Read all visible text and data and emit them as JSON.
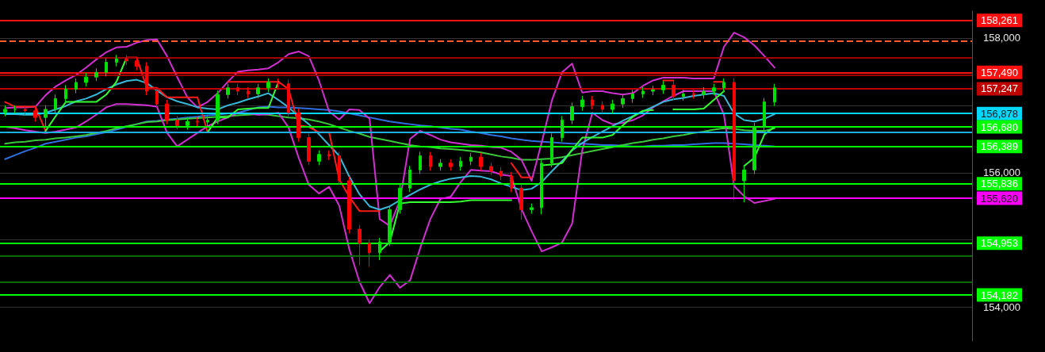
{
  "chart_data": {
    "type": "candlestick",
    "categories": [
      null,
      null,
      null,
      null,
      null,
      null,
      null,
      null,
      null,
      null,
      null,
      null,
      null,
      null,
      null,
      null,
      null,
      null,
      null,
      null,
      null,
      null,
      null,
      null,
      null,
      null,
      null,
      null,
      null,
      null,
      null,
      null,
      null,
      null,
      null,
      null,
      null,
      null,
      null,
      null,
      null,
      null,
      null,
      null,
      null,
      null,
      null,
      null,
      null,
      null,
      null,
      null,
      null,
      null,
      null,
      null,
      null,
      null,
      null,
      null,
      null,
      null,
      null,
      null,
      null,
      null,
      null,
      null,
      null,
      null,
      null,
      null,
      null,
      null,
      null,
      null,
      null,
      null,
      null,
      null,
      null,
      null,
      null,
      null,
      null,
      null,
      null,
      null,
      null,
      null,
      null,
      null,
      null,
      null,
      null,
      null
    ],
    "ylim": [
      153500,
      158400
    ],
    "yticks": [
      {
        "value": 154000,
        "label": "154,000"
      },
      {
        "value": 155000,
        "label": null
      },
      {
        "value": 156000,
        "label": "156,000"
      },
      {
        "value": 157000,
        "label": null
      },
      {
        "value": 158000,
        "label": "158,000"
      }
    ],
    "grid": "y",
    "tick_labels": "y",
    "series": [
      {
        "ohlc": [
          [
            156900,
            157000,
            156840,
            156940
          ],
          [
            156940,
            157000,
            156880,
            156940
          ],
          [
            156940,
            157000,
            156860,
            156920
          ],
          [
            156920,
            156980,
            156760,
            156820
          ],
          [
            156820,
            157000,
            156680,
            156940
          ],
          [
            156940,
            157160,
            156880,
            157100
          ],
          [
            157100,
            157300,
            157040,
            157240
          ],
          [
            157240,
            157400,
            157180,
            157340
          ],
          [
            157340,
            157480,
            157280,
            157420
          ],
          [
            157420,
            157550,
            157360,
            157490
          ],
          [
            157490,
            157700,
            157430,
            157640
          ],
          [
            157640,
            157750,
            157580,
            157690
          ],
          [
            157690,
            157750,
            157600,
            157660
          ],
          [
            157660,
            157720,
            157520,
            157580
          ],
          [
            157580,
            157640,
            157150,
            157210
          ],
          [
            157210,
            157270,
            156960,
            157020
          ],
          [
            157020,
            157080,
            156720,
            156780
          ],
          [
            156780,
            156840,
            156640,
            156700
          ],
          [
            156700,
            156820,
            156640,
            156760
          ],
          [
            156760,
            156820,
            156690,
            156750
          ],
          [
            156750,
            156840,
            156690,
            156780
          ],
          [
            156780,
            157220,
            156720,
            157160
          ],
          [
            157160,
            157320,
            157100,
            157260
          ],
          [
            157260,
            157320,
            157150,
            157210
          ],
          [
            157210,
            157270,
            157110,
            157170
          ],
          [
            157170,
            157320,
            157110,
            157260
          ],
          [
            157260,
            157400,
            157200,
            157340
          ],
          [
            157340,
            157400,
            157260,
            157320
          ],
          [
            157320,
            157380,
            156830,
            156890
          ],
          [
            156890,
            156950,
            156460,
            156520
          ],
          [
            156520,
            156580,
            156110,
            156170
          ],
          [
            156170,
            156330,
            156110,
            156270
          ],
          [
            156270,
            156330,
            156190,
            156250
          ],
          [
            156250,
            156310,
            155820,
            155880
          ],
          [
            155880,
            155940,
            155100,
            155160
          ],
          [
            155160,
            155220,
            154620,
            154950
          ],
          [
            154950,
            155010,
            154600,
            154810
          ],
          [
            154810,
            155030,
            154700,
            154970
          ],
          [
            154970,
            155510,
            154910,
            155450
          ],
          [
            155450,
            155830,
            155390,
            155770
          ],
          [
            155770,
            156100,
            155710,
            156040
          ],
          [
            156040,
            156310,
            155980,
            156250
          ],
          [
            156250,
            156310,
            156030,
            156090
          ],
          [
            156090,
            156200,
            156030,
            156140
          ],
          [
            156140,
            156200,
            156030,
            156090
          ],
          [
            156090,
            156230,
            156030,
            156170
          ],
          [
            156170,
            156290,
            156110,
            156230
          ],
          [
            156230,
            156290,
            156030,
            156090
          ],
          [
            156090,
            156150,
            155960,
            156020
          ],
          [
            156020,
            156080,
            155890,
            155950
          ],
          [
            155950,
            156010,
            155710,
            155770
          ],
          [
            155770,
            155830,
            155300,
            155450
          ],
          [
            155450,
            155540,
            155390,
            155480
          ],
          [
            155480,
            156200,
            155380,
            156140
          ],
          [
            156140,
            156580,
            156080,
            156520
          ],
          [
            156520,
            156840,
            156460,
            156780
          ],
          [
            156780,
            157040,
            156720,
            156980
          ],
          [
            156980,
            157140,
            156920,
            157080
          ],
          [
            157080,
            157140,
            156940,
            157000
          ],
          [
            157000,
            157060,
            156880,
            156940
          ],
          [
            156940,
            157080,
            156880,
            157020
          ],
          [
            157020,
            157160,
            156960,
            157100
          ],
          [
            157100,
            157230,
            157040,
            157170
          ],
          [
            157170,
            157270,
            157110,
            157210
          ],
          [
            157210,
            157290,
            157150,
            157230
          ],
          [
            157230,
            157360,
            157170,
            157300
          ],
          [
            157300,
            157360,
            157070,
            157130
          ],
          [
            157130,
            157230,
            157070,
            157170
          ],
          [
            157170,
            157230,
            157100,
            157160
          ],
          [
            157160,
            157270,
            157100,
            157210
          ],
          [
            157210,
            157320,
            157150,
            157260
          ],
          [
            157260,
            157400,
            157200,
            157340
          ],
          [
            157340,
            157400,
            155600,
            155880
          ],
          [
            155880,
            156100,
            155560,
            156040
          ],
          [
            156040,
            156740,
            155980,
            156680
          ],
          [
            156680,
            157110,
            156620,
            157050
          ],
          [
            157050,
            157320,
            156990,
            157260
          ],
          null,
          null,
          null,
          null,
          null,
          null,
          null,
          null,
          null,
          null,
          null,
          null,
          null,
          null,
          null,
          null,
          null,
          null,
          null
        ],
        "colors": [
          "#00e000",
          "#00e000",
          "#ff0000",
          "#ff0000",
          "#00e000",
          "#00e000",
          "#00e000",
          "#00e000",
          "#00e000",
          "#00e000",
          "#00e000",
          "#00e000",
          "#ff0000",
          "#ff0000",
          "#ff0000",
          "#ff0000",
          "#ff0000",
          "#ff0000",
          "#00e000",
          "#ff0000",
          "#00e000",
          "#00e000",
          "#00e000",
          "#ff0000",
          "#ff0000",
          "#00e000",
          "#00e000",
          "#ff0000",
          "#ff0000",
          "#ff0000",
          "#ff0000",
          "#00e000",
          "#ff0000",
          "#ff0000",
          "#ff0000",
          "#ff0000",
          "#ff0000",
          "#00e000",
          "#00e000",
          "#00e000",
          "#00e000",
          "#00e000",
          "#ff0000",
          "#00e000",
          "#ff0000",
          "#00e000",
          "#00e000",
          "#ff0000",
          "#ff0000",
          "#ff0000",
          "#ff0000",
          "#ff0000",
          "#00e000",
          "#00e000",
          "#00e000",
          "#00e000",
          "#00e000",
          "#00e000",
          "#ff0000",
          "#ff0000",
          "#00e000",
          "#00e000",
          "#00e000",
          "#00e000",
          "#00e000",
          "#00e000",
          "#ff0000",
          "#00e000",
          "#ff0000",
          "#00e000",
          "#00e000",
          "#00e000",
          "#ff0000",
          "#00e000",
          "#00e000",
          "#00e000",
          "#00e000",
          null,
          null,
          null,
          null,
          null,
          null,
          null,
          null,
          null,
          null,
          null,
          null,
          null,
          null,
          null,
          null,
          null,
          null,
          null
        ]
      },
      {
        "type": "line",
        "color": "#2f6fe0",
        "values": [
          156200,
          156260,
          156320,
          156370,
          156430,
          156460,
          156490,
          156520,
          156540,
          156570,
          156600,
          156640,
          156680,
          156720,
          156760,
          156770,
          156790,
          156800,
          156820,
          156830,
          156850,
          156860,
          156880,
          156890,
          156930,
          156970,
          156980,
          156970,
          156970,
          156960,
          156950,
          156940,
          156930,
          156910,
          156880,
          156850,
          156820,
          156790,
          156760,
          156740,
          156720,
          156700,
          156690,
          156670,
          156650,
          156640,
          156610,
          156590,
          156560,
          156540,
          156510,
          156490,
          156470,
          156460,
          156450,
          156440,
          156430,
          156430,
          156420,
          156410,
          156410,
          156400,
          156390,
          156390,
          156400,
          156400,
          156410,
          156410,
          156420,
          156430,
          156440,
          156440,
          156430,
          156420,
          156410,
          156400,
          156390,
          null,
          null,
          null,
          null,
          null,
          null,
          null,
          null,
          null,
          null,
          null,
          null,
          null,
          null,
          null,
          null,
          null,
          null,
          null
        ]
      },
      {
        "type": "line",
        "color": "#3cc83c",
        "values": [
          156430,
          156450,
          156460,
          156480,
          156490,
          156510,
          156520,
          156540,
          156560,
          156590,
          156620,
          156660,
          156690,
          156720,
          156750,
          156760,
          156780,
          156790,
          156800,
          156810,
          156820,
          156830,
          156840,
          156850,
          156860,
          156870,
          156860,
          156840,
          156820,
          156810,
          156790,
          156760,
          156720,
          156670,
          156620,
          156580,
          156530,
          156500,
          156470,
          156440,
          156410,
          156390,
          156380,
          156360,
          156350,
          156340,
          156320,
          156300,
          156270,
          156240,
          156220,
          156190,
          156190,
          156200,
          156210,
          156230,
          156260,
          156290,
          156320,
          156350,
          156380,
          156410,
          156440,
          156460,
          156490,
          156510,
          156540,
          156560,
          156590,
          156610,
          156640,
          156660,
          156650,
          156630,
          156620,
          156620,
          156660,
          null,
          null,
          null,
          null,
          null,
          null,
          null,
          null,
          null,
          null,
          null,
          null,
          null,
          null,
          null,
          null,
          null,
          null,
          null
        ]
      },
      {
        "type": "line",
        "color": "#d030d0",
        "values": [
          156960,
          156970,
          156970,
          156980,
          157150,
          157280,
          157370,
          157450,
          157560,
          157680,
          157790,
          157860,
          157870,
          157930,
          157970,
          157980,
          157730,
          157420,
          157120,
          156970,
          157050,
          157180,
          157350,
          157500,
          157520,
          157530,
          157550,
          157640,
          157760,
          157800,
          157730,
          157370,
          156910,
          156790,
          156940,
          156930,
          156800,
          155310,
          155210,
          155590,
          156500,
          156620,
          156560,
          156490,
          156450,
          156430,
          156410,
          156400,
          156380,
          156370,
          156310,
          156190,
          155880,
          156450,
          157070,
          157490,
          157620,
          157190,
          157210,
          157210,
          157180,
          157160,
          157180,
          157290,
          157370,
          157410,
          157410,
          157410,
          157400,
          157400,
          157400,
          157870,
          158080,
          158010,
          157890,
          157730,
          157560,
          null,
          null,
          null,
          null,
          null,
          null,
          null,
          null,
          null,
          null,
          null,
          null,
          null,
          null,
          null,
          null,
          null,
          null,
          null
        ]
      },
      {
        "type": "line",
        "color": "#d030d0",
        "values": [
          156680,
          156660,
          156630,
          156610,
          156590,
          156610,
          156640,
          156670,
          156760,
          156860,
          156970,
          157020,
          157020,
          157010,
          157000,
          156980,
          156590,
          156390,
          156490,
          156590,
          156690,
          156760,
          156820,
          156890,
          156880,
          156860,
          156870,
          156890,
          156670,
          156220,
          155820,
          155690,
          155790,
          155510,
          154860,
          154380,
          154060,
          154300,
          154480,
          154290,
          154400,
          154880,
          155310,
          155610,
          155640,
          155860,
          156040,
          156030,
          156020,
          155970,
          155950,
          155460,
          155130,
          154830,
          154890,
          154960,
          155240,
          156330,
          156890,
          156780,
          156720,
          156740,
          156780,
          156850,
          156970,
          157060,
          157140,
          157210,
          157210,
          157210,
          157210,
          156860,
          155800,
          155650,
          155550,
          155580,
          155610,
          null,
          null,
          null,
          null,
          null,
          null,
          null,
          null,
          null,
          null,
          null,
          null,
          null,
          null,
          null,
          null,
          null,
          null,
          null
        ]
      },
      {
        "type": "line",
        "color": "#38b8d8",
        "values": [
          156870,
          156870,
          156860,
          156860,
          156890,
          156940,
          156990,
          157060,
          157100,
          157160,
          157240,
          157310,
          157360,
          157380,
          157330,
          157220,
          157120,
          157060,
          157020,
          156970,
          156950,
          156940,
          157000,
          157040,
          157090,
          157130,
          157180,
          157080,
          156970,
          156840,
          156720,
          156570,
          156410,
          156250,
          155940,
          155680,
          155500,
          155450,
          155500,
          155590,
          155670,
          155750,
          155820,
          155870,
          155910,
          155930,
          155950,
          155940,
          155900,
          155840,
          155790,
          155740,
          155760,
          155860,
          156020,
          156170,
          156330,
          156440,
          156530,
          156610,
          156690,
          156770,
          156840,
          156910,
          156980,
          157050,
          157090,
          157110,
          157140,
          157160,
          157180,
          157140,
          156880,
          156780,
          156760,
          156800,
          156870,
          null,
          null,
          null,
          null,
          null,
          null,
          null,
          null,
          null,
          null,
          null,
          null,
          null,
          null,
          null,
          null,
          null,
          null,
          null
        ]
      },
      {
        "type": "line",
        "color": "#ff1a1a",
        "values": [
          157050,
          156980,
          156980,
          156980,
          156620,
          null,
          null,
          null,
          null,
          null,
          null,
          null,
          157710,
          157710,
          157260,
          157260,
          157120,
          157120,
          157120,
          157120,
          156600,
          null,
          157350,
          157350,
          157350,
          157350,
          157350,
          157350,
          157240,
          156700,
          156680,
          156600,
          156600,
          155900,
          155640,
          155430,
          155430,
          155430,
          null,
          null,
          null,
          null,
          null,
          null,
          null,
          null,
          null,
          null,
          null,
          null,
          156140,
          155930,
          155930,
          null,
          null,
          null,
          null,
          null,
          null,
          null,
          null,
          null,
          null,
          null,
          null,
          157370,
          157370,
          null,
          null,
          null,
          157350,
          157350,
          null,
          null,
          null,
          null,
          null,
          null,
          null,
          null,
          null,
          null,
          null,
          null,
          null,
          null,
          null,
          null,
          null,
          null,
          null,
          null,
          null,
          null,
          null,
          null
        ]
      },
      {
        "type": "line",
        "color": "#33ff33",
        "values": [
          null,
          null,
          null,
          null,
          156620,
          156840,
          157050,
          157050,
          157050,
          157050,
          157160,
          157350,
          157710,
          null,
          null,
          null,
          null,
          null,
          null,
          null,
          156600,
          156820,
          156820,
          156940,
          156950,
          156960,
          156960,
          157350,
          null,
          null,
          null,
          null,
          null,
          null,
          null,
          null,
          null,
          154830,
          154970,
          155540,
          155560,
          155560,
          155560,
          155560,
          155560,
          155570,
          155590,
          155590,
          155590,
          155590,
          155590,
          null,
          null,
          156110,
          156120,
          156140,
          156340,
          156520,
          156520,
          156520,
          156560,
          156700,
          156830,
          156920,
          156930,
          null,
          156940,
          156940,
          156940,
          156950,
          157080,
          157210,
          null,
          156100,
          156220,
          156570,
          156680,
          null,
          null,
          null,
          null,
          null,
          null,
          null,
          null,
          null,
          null,
          null,
          null,
          null,
          null,
          null,
          null,
          null,
          null,
          null
        ]
      }
    ],
    "ref_lines": [
      {
        "axis": "y",
        "value": 158261,
        "label": "158,261",
        "color": "#ff1010"
      },
      {
        "axis": "y",
        "value": 157950,
        "color": "#ff5a28",
        "line_style": "dashed"
      },
      {
        "axis": "y",
        "value": 157710,
        "color": "#a00000"
      },
      {
        "axis": "y",
        "value": 157490,
        "label": "157,490",
        "color": "#ff1010"
      },
      {
        "axis": "y",
        "value": 157450,
        "color": "#a00000"
      },
      {
        "axis": "y",
        "value": 157247,
        "label": "157,247",
        "color": "#c00000"
      },
      {
        "axis": "y",
        "value": 156878,
        "label": "156,878",
        "color": "#00d8ff"
      },
      {
        "axis": "y",
        "value": 156680,
        "label": "156,680",
        "color": "#00ff00"
      },
      {
        "axis": "y",
        "value": 156600,
        "color": "#1ab0e0"
      },
      {
        "axis": "y",
        "value": 156389,
        "label": "156,389",
        "color": "#00ff00"
      },
      {
        "axis": "y",
        "value": 155836,
        "label": "155,836",
        "color": "#00ff00"
      },
      {
        "axis": "y",
        "value": 155620,
        "label": "155,620",
        "color": "#ff00ff"
      },
      {
        "axis": "y",
        "value": 154953,
        "label": "154,953",
        "color": "#00ff00"
      },
      {
        "axis": "y",
        "value": 154760,
        "color": "#0a6a0a"
      },
      {
        "axis": "y",
        "value": 154380,
        "color": "#0a6a0a"
      },
      {
        "axis": "y",
        "value": 154182,
        "label": "154,182",
        "color": "#00ff00"
      }
    ]
  }
}
